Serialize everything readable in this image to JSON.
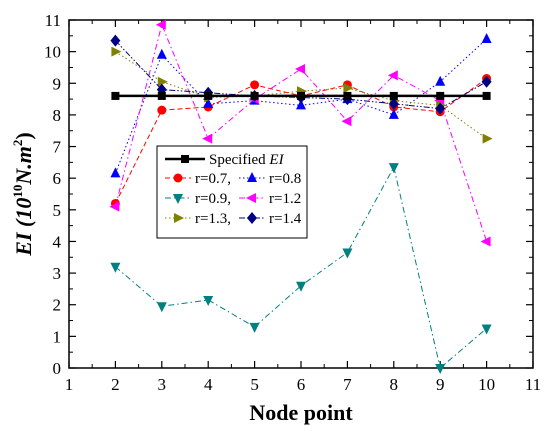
{
  "chart_data": {
    "type": "line",
    "xlabel": "Node point",
    "ylabel": "EI (10",
    "ylabel_exp": "10",
    "ylabel_unit": "N.m",
    "ylabel_unit_exp": "2",
    "ylabel_close": ")",
    "xlim": [
      1,
      11
    ],
    "ylim": [
      0,
      11
    ],
    "xticks": [
      1,
      2,
      3,
      4,
      5,
      6,
      7,
      8,
      9,
      10,
      11
    ],
    "yticks": [
      0,
      1,
      2,
      3,
      4,
      5,
      6,
      7,
      8,
      9,
      10,
      11
    ],
    "x": [
      2,
      3,
      4,
      5,
      6,
      7,
      8,
      9,
      10
    ],
    "grid": false,
    "legend_position": "upper-left",
    "series": [
      {
        "name": "Specified",
        "name_suffix": "EI",
        "color": "#000000",
        "marker": "square",
        "dash": "solid",
        "values": [
          8.6,
          8.6,
          8.6,
          8.6,
          8.6,
          8.6,
          8.6,
          8.6,
          8.6
        ]
      },
      {
        "name": "r=0.7,",
        "color": "#ff0000",
        "marker": "circle",
        "dash": "dash",
        "values": [
          5.2,
          8.15,
          8.25,
          8.95,
          8.6,
          8.95,
          8.25,
          8.1,
          9.15
        ]
      },
      {
        "name": "r=0.8",
        "color": "#0000ff",
        "marker": "triangle-up",
        "dash": "dot",
        "values": [
          6.15,
          9.9,
          8.35,
          8.45,
          8.3,
          8.5,
          8.0,
          9.05,
          10.4
        ]
      },
      {
        "name": "r=0.9,",
        "color": "#008080",
        "marker": "triangle-down",
        "dash": "dashdot",
        "values": [
          3.2,
          1.95,
          2.15,
          1.3,
          2.6,
          3.65,
          6.35,
          0.0,
          1.25
        ]
      },
      {
        "name": "r=1.2",
        "color": "#ff00ff",
        "marker": "triangle-left",
        "dash": "dashdot",
        "values": [
          5.1,
          10.85,
          7.25,
          8.5,
          9.45,
          7.8,
          9.25,
          8.45,
          4.0
        ]
      },
      {
        "name": "r=1.3,",
        "color": "#808000",
        "marker": "triangle-right",
        "dash": "dot",
        "values": [
          10.0,
          9.05,
          8.55,
          8.6,
          8.75,
          8.85,
          8.45,
          8.3,
          7.25
        ]
      },
      {
        "name": "r=1.4",
        "color": "#000080",
        "marker": "diamond",
        "dash": "dashdotdot",
        "values": [
          10.35,
          8.8,
          8.7,
          8.6,
          8.55,
          8.5,
          8.35,
          8.2,
          9.05
        ]
      }
    ]
  }
}
